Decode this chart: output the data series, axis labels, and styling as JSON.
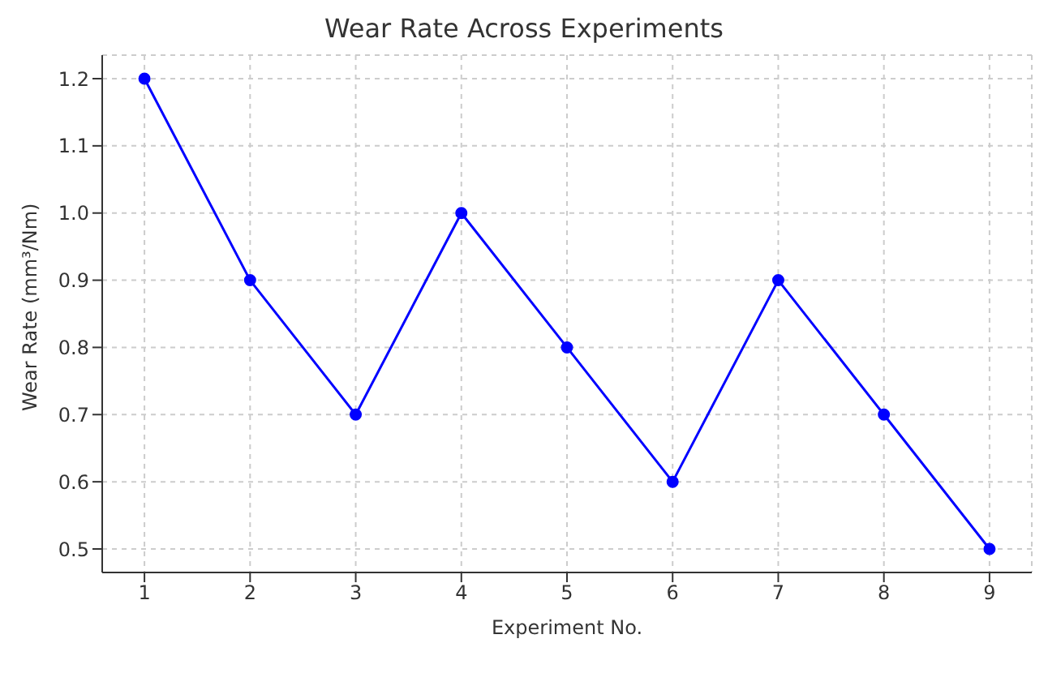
{
  "chart_data": {
    "type": "line",
    "title": "Wear Rate Across Experiments",
    "xlabel": "Experiment No.",
    "ylabel": "Wear Rate (mm³/Nm)",
    "x": [
      1,
      2,
      3,
      4,
      5,
      6,
      7,
      8,
      9
    ],
    "series": [
      {
        "color": "#0000ff",
        "values": [
          1.2,
          0.9,
          0.7,
          1.0,
          0.8,
          0.6,
          0.9,
          0.7,
          0.5
        ]
      }
    ],
    "xlim": [
      0.6,
      9.4
    ],
    "xticks": [
      1,
      2,
      3,
      4,
      5,
      6,
      7,
      8,
      9
    ],
    "ylim": [
      0.465,
      1.235
    ],
    "yticks": [
      {
        "value": 0.5,
        "label": "0.5"
      },
      {
        "value": 0.6,
        "label": "0.6"
      },
      {
        "value": 0.7,
        "label": "0.7"
      },
      {
        "value": 0.8,
        "label": "0.8"
      },
      {
        "value": 0.9,
        "label": "0.9"
      },
      {
        "value": 1.0,
        "label": "1.0"
      },
      {
        "value": 1.1,
        "label": "1.1"
      },
      {
        "value": 1.2,
        "label": "1.2"
      }
    ],
    "grid": true,
    "marker": "circle",
    "line_style": "solid"
  }
}
